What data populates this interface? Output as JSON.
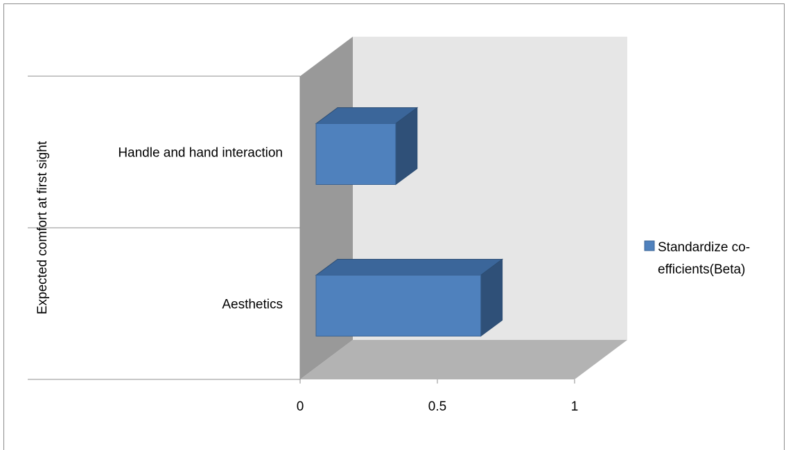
{
  "chart_data": {
    "type": "bar",
    "orientation": "horizontal",
    "style": "3d",
    "group_label": "Expected comfort at first sight",
    "categories": [
      "Handle and hand interaction",
      "Aesthetics"
    ],
    "series": [
      {
        "name": "Standardize co-efficients(Beta)",
        "values": [
          0.29,
          0.6
        ]
      }
    ],
    "legend": {
      "lines": [
        "Standardize co-",
        "efficients(Beta)"
      ],
      "position": "right"
    },
    "x_ticks": [
      "0",
      "0.5",
      "1"
    ],
    "xlim": [
      0,
      1
    ],
    "grid": false,
    "colors": {
      "bar_front": "#4f81bd",
      "bar_top": "#3b669a",
      "bar_side": "#2f5078",
      "back_wall": "#e6e6e6",
      "side_wall": "#999999",
      "floor": "#b3b3b3"
    }
  }
}
